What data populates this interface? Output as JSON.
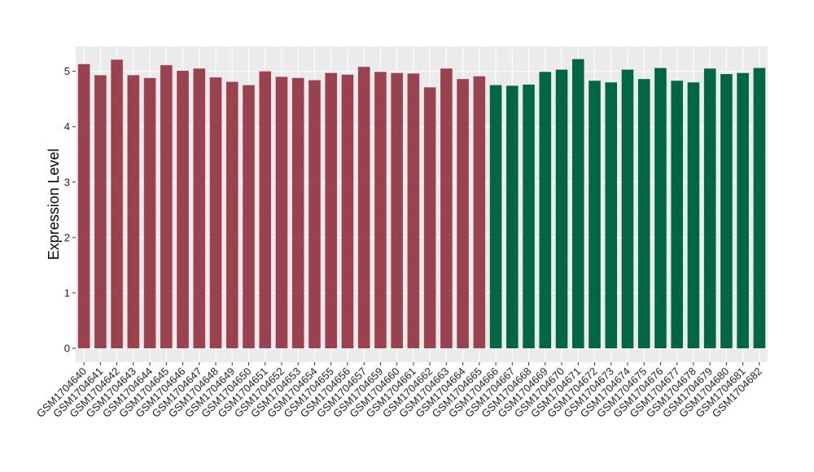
{
  "chart_data": {
    "type": "bar",
    "ylabel": "Expression Level",
    "xlabel": "",
    "ylim": [
      -0.25,
      5.45
    ],
    "yticks": [
      0,
      1,
      2,
      3,
      4,
      5
    ],
    "grid": true,
    "panel_background": "#ebebeb",
    "categories": [
      "GSM1704640",
      "GSM1704641",
      "GSM1704642",
      "GSM1704643",
      "GSM1704644",
      "GSM1704645",
      "GSM1704646",
      "GSM1704647",
      "GSM1704648",
      "GSM1704649",
      "GSM1704650",
      "GSM1704651",
      "GSM1704652",
      "GSM1704653",
      "GSM1704654",
      "GSM1704655",
      "GSM1704656",
      "GSM1704657",
      "GSM1704659",
      "GSM1704660",
      "GSM1704661",
      "GSM1704662",
      "GSM1704663",
      "GSM1704664",
      "GSM1704665",
      "GSM1704666",
      "GSM1704667",
      "GSM1704668",
      "GSM1704669",
      "GSM1704670",
      "GSM1704671",
      "GSM1704672",
      "GSM1704673",
      "GSM1704674",
      "GSM1704675",
      "GSM1704676",
      "GSM1704677",
      "GSM1704678",
      "GSM1704679",
      "GSM1704680",
      "GSM1704681",
      "GSM1704682"
    ],
    "values": [
      5.13,
      4.93,
      5.21,
      4.93,
      4.88,
      5.11,
      5.01,
      5.05,
      4.89,
      4.81,
      4.75,
      5.0,
      4.9,
      4.88,
      4.84,
      4.97,
      4.94,
      5.08,
      4.99,
      4.97,
      4.96,
      4.71,
      5.05,
      4.86,
      4.91,
      4.75,
      4.74,
      4.76,
      4.99,
      5.03,
      5.22,
      4.83,
      4.8,
      5.03,
      4.86,
      5.06,
      4.83,
      4.8,
      5.05,
      4.95,
      4.97,
      5.06
    ],
    "groups": [
      "A",
      "A",
      "A",
      "A",
      "A",
      "A",
      "A",
      "A",
      "A",
      "A",
      "A",
      "A",
      "A",
      "A",
      "A",
      "A",
      "A",
      "A",
      "A",
      "A",
      "A",
      "A",
      "A",
      "A",
      "A",
      "B",
      "B",
      "B",
      "B",
      "B",
      "B",
      "B",
      "B",
      "B",
      "B",
      "B",
      "B",
      "B",
      "B",
      "B",
      "B",
      "B"
    ],
    "colors": {
      "A": "#9b4250",
      "B": "#006644"
    }
  }
}
